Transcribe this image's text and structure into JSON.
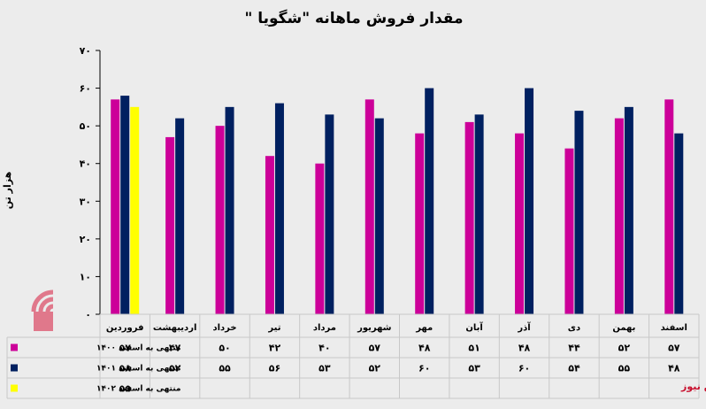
{
  "chart_data": {
    "type": "bar",
    "title": "مقدار فروش ماهانه \"شگویا \"",
    "ylabel": "هزار تن",
    "ylim": [
      0,
      70
    ],
    "yticks": [
      "۰",
      "۱۰",
      "۲۰",
      "۳۰",
      "۴۰",
      "۵۰",
      "۶۰",
      "۷۰"
    ],
    "grid": false,
    "legend": "table-left",
    "categories": [
      "فروردین",
      "اردیبهشت",
      "خرداد",
      "تیر",
      "مرداد",
      "شهریور",
      "مهر",
      "آبان",
      "آذر",
      "دی",
      "بهمن",
      "اسفند"
    ],
    "series": [
      {
        "name": "منتهی به اسفند ۱۴۰۰",
        "color": "#cc0099",
        "values": [
          57,
          47,
          50,
          42,
          40,
          57,
          48,
          51,
          48,
          44,
          52,
          57
        ],
        "labels": [
          "۵۷",
          "۴۷",
          "۵۰",
          "۴۲",
          "۴۰",
          "۵۷",
          "۴۸",
          "۵۱",
          "۴۸",
          "۴۴",
          "۵۲",
          "۵۷"
        ]
      },
      {
        "name": "منتهی به اسفند ۱۴۰۱",
        "color": "#002060",
        "values": [
          58,
          52,
          55,
          56,
          53,
          52,
          60,
          53,
          60,
          54,
          55,
          48
        ],
        "labels": [
          "۵۸",
          "۵۲",
          "۵۵",
          "۵۶",
          "۵۳",
          "۵۲",
          "۶۰",
          "۵۳",
          "۶۰",
          "۵۴",
          "۵۵",
          "۴۸"
        ]
      },
      {
        "name": "منتهی به اسفند ۱۴۰۲",
        "color": "#ffff00",
        "values": [
          55,
          null,
          null,
          null,
          null,
          null,
          null,
          null,
          null,
          null,
          null,
          null
        ],
        "labels": [
          "۵۵",
          "",
          "",
          "",
          "",
          "",
          "",
          "",
          "",
          "",
          "",
          ""
        ]
      }
    ]
  },
  "source": "بورس نیوز"
}
